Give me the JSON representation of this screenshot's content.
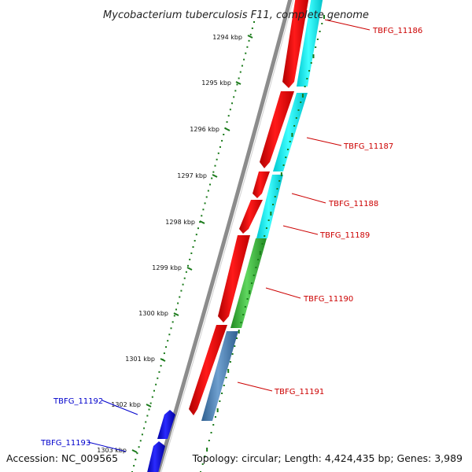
{
  "title": "Mycobacterium tuberculosis F11, complete genome",
  "accession": "Accession: NC_009565",
  "topology": "Topology: circular; Length: 4,424,435 bp; Genes: 3,989",
  "ticks": [
    {
      "label": "1294 kbp"
    },
    {
      "label": "1295 kbp"
    },
    {
      "label": "1296 kbp"
    },
    {
      "label": "1297 kbp"
    },
    {
      "label": "1298 kbp"
    },
    {
      "label": "1299 kbp"
    },
    {
      "label": "1300 kbp"
    },
    {
      "label": "1301 kbp"
    },
    {
      "label": "1302 kbp"
    },
    {
      "label": "1303 kbp"
    }
  ],
  "genes_red": [
    {
      "label": "TBFG_11186",
      "color": "#cc0000"
    },
    {
      "label": "TBFG_11187",
      "color": "#cc0000"
    },
    {
      "label": "TBFG_11188",
      "color": "#cc0000"
    },
    {
      "label": "TBFG_11189",
      "color": "#cc0000"
    },
    {
      "label": "TBFG_11190",
      "color": "#cc0000"
    },
    {
      "label": "TBFG_11191",
      "color": "#cc0000"
    }
  ],
  "genes_blue": [
    {
      "label": "TBFG_11192",
      "color": "#0000cc"
    },
    {
      "label": "TBFG_11193",
      "color": "#0000cc"
    }
  ],
  "colors": {
    "forward_strand": "#ee0000",
    "cyan_feature": "#00e5ee",
    "green_feature": "#33bb33",
    "steel_feature": "#4a7fb0",
    "reverse_strand": "#0000dd",
    "backbone": "#888888",
    "tick_marks": "#1a7a1a"
  }
}
